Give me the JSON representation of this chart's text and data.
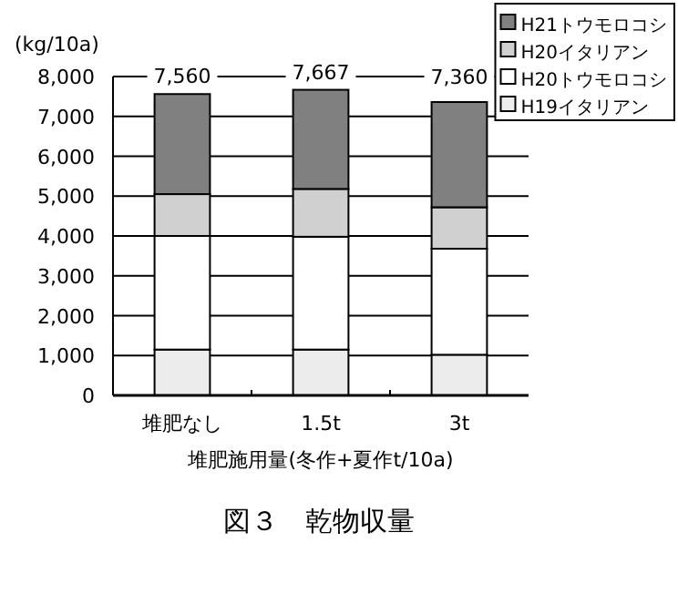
{
  "chart_data": {
    "type": "bar",
    "stacked": true,
    "title": "図３　乾物収量",
    "ylabel": "(kg/10a)",
    "xlabel": "堆肥施用量(冬作+夏作t/10a)",
    "categories": [
      "堆肥なし",
      "1.5t",
      "3t"
    ],
    "series": [
      {
        "name": "H19イタリアン",
        "color": "#ececec",
        "values": [
          1150,
          1150,
          1020
        ]
      },
      {
        "name": "H20トウモロコシ",
        "color": "#ffffff",
        "values": [
          2850,
          2830,
          2660
        ]
      },
      {
        "name": "H20イタリアン",
        "color": "#d0d0d0",
        "values": [
          1050,
          1200,
          1040
        ]
      },
      {
        "name": "H21トウモロコシ",
        "color": "#808080",
        "values": [
          2510,
          2487,
          2640
        ]
      }
    ],
    "totals": [
      "7,560",
      "7,667",
      "7,360"
    ],
    "ylim": [
      0,
      8000
    ],
    "yticks": [
      {
        "value": 0,
        "label": "0"
      },
      {
        "value": 1000,
        "label": "1,000"
      },
      {
        "value": 2000,
        "label": "2,000"
      },
      {
        "value": 3000,
        "label": "3,000"
      },
      {
        "value": 4000,
        "label": "4,000"
      },
      {
        "value": 5000,
        "label": "5,000"
      },
      {
        "value": 6000,
        "label": "6,000"
      },
      {
        "value": 7000,
        "label": "7,000"
      },
      {
        "value": 8000,
        "label": "8,000"
      }
    ],
    "grid": "y",
    "legend": "top right"
  }
}
